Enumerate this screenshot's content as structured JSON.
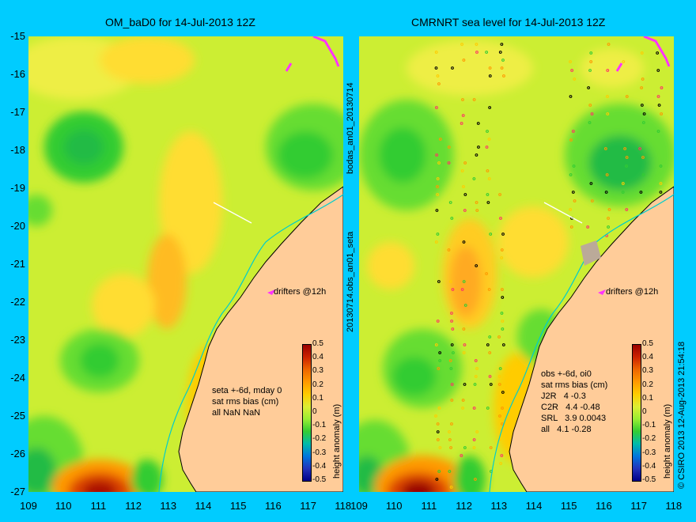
{
  "left_panel": {
    "title": "OM_baD0 for 14-Jul-2013 12Z",
    "stats": "seta +-6d, mday 0\nsat rms bias (cm)\nall NaN NaN",
    "drifters": "drifters @12h"
  },
  "right_panel": {
    "title": "CMRNRT sea level  for 14-Jul-2013 12Z",
    "stats": "obs +-6d, oi0\nsat rms bias (cm)\nJ2R   4 -0.3\nC2R   4.4 -0.48\nSRL   3.9 0.0043\nall   4.1 -0.28",
    "drifters": "drifters @12h"
  },
  "middle_labels": {
    "upper": "bodas_an01_20130714",
    "lower": "20130714.obs_an01_seta"
  },
  "credit": "© CSIRO 2013   12-Aug-2013 21:54:18",
  "y_axis": [
    "-15",
    "-16",
    "-17",
    "-18",
    "-19",
    "-20",
    "-21",
    "-22",
    "-23",
    "-24",
    "-25",
    "-26",
    "-27"
  ],
  "x_axis": [
    "109",
    "110",
    "111",
    "112",
    "113",
    "114",
    "115",
    "116",
    "117",
    "118"
  ],
  "colorbar": {
    "title": "height anomaly (m)",
    "ticks": [
      "0.5",
      "0.4",
      "0.3",
      "0.2",
      "0.1",
      "0",
      "-0.1",
      "-0.2",
      "-0.3",
      "-0.4",
      "-0.5"
    ],
    "colors": [
      "#990000",
      "#cc2200",
      "#ee6600",
      "#ff9900",
      "#ffcc00",
      "#ddee33",
      "#99ee33",
      "#33cc33",
      "#00bbaa",
      "#0077dd",
      "#2233bb",
      "#000088"
    ]
  },
  "colors": {
    "background": "#00ccff",
    "land": "#ffcc99",
    "coast": "#00cccc",
    "drifter": "#ff33ff"
  }
}
